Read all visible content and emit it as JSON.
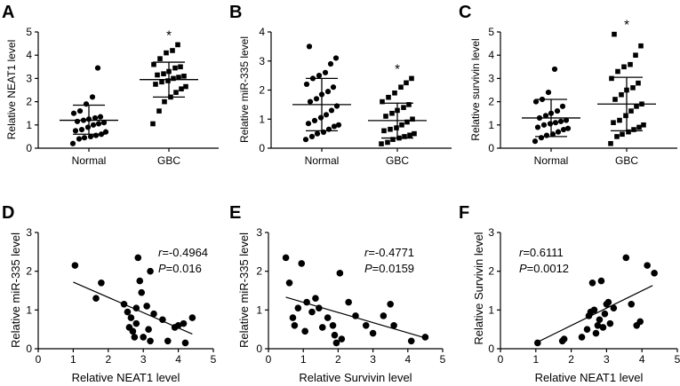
{
  "chart_data": [
    {
      "panel": "A",
      "type": "scatter",
      "ylabel": "Relative NEAT1 level",
      "categories": [
        "Normal",
        "GBC"
      ],
      "ylim": [
        0,
        5
      ],
      "yticks": [
        "0",
        "1",
        "2",
        "3",
        "4",
        "5"
      ],
      "series": [
        {
          "name": "Normal",
          "marker": "circle",
          "values": [
            0.2,
            0.4,
            0.45,
            0.5,
            0.55,
            0.6,
            0.7,
            0.75,
            0.8,
            0.9,
            1.0,
            1.05,
            1.1,
            1.15,
            1.2,
            1.25,
            1.3,
            1.35,
            1.5,
            1.6,
            1.9,
            2.2,
            3.45
          ],
          "mean": 1.2,
          "sd_low": 0.6,
          "sd_high": 1.85
        },
        {
          "name": "GBC",
          "marker": "square",
          "values": [
            1.05,
            1.6,
            2.0,
            2.2,
            2.4,
            2.55,
            2.65,
            2.75,
            2.85,
            2.9,
            3.0,
            3.05,
            3.1,
            3.15,
            3.2,
            3.3,
            3.45,
            3.5,
            3.6,
            3.85,
            4.1,
            4.2,
            4.45
          ],
          "mean": 2.95,
          "sd_low": 2.2,
          "sd_high": 3.7,
          "significance": "*"
        }
      ]
    },
    {
      "panel": "B",
      "type": "scatter",
      "ylabel": "Relative miR-335 level",
      "categories": [
        "Normal",
        "GBC"
      ],
      "ylim": [
        0,
        4
      ],
      "yticks": [
        "0",
        "1",
        "2",
        "3",
        "4"
      ],
      "series": [
        {
          "name": "Normal",
          "marker": "circle",
          "values": [
            0.3,
            0.4,
            0.5,
            0.55,
            0.65,
            0.75,
            0.8,
            0.85,
            0.95,
            1.05,
            1.15,
            1.3,
            1.45,
            1.6,
            1.7,
            1.85,
            1.95,
            2.1,
            2.2,
            2.4,
            2.5,
            2.6,
            2.9,
            3.1,
            3.5
          ],
          "mean": 1.5,
          "sd_low": 0.6,
          "sd_high": 2.4
        },
        {
          "name": "GBC",
          "marker": "square",
          "values": [
            0.15,
            0.2,
            0.3,
            0.35,
            0.4,
            0.45,
            0.5,
            0.6,
            0.65,
            0.7,
            0.8,
            0.9,
            1.0,
            1.1,
            1.2,
            1.3,
            1.4,
            1.5,
            1.6,
            1.75,
            1.9,
            2.1,
            2.25,
            2.4
          ],
          "mean": 0.95,
          "sd_low": 0.35,
          "sd_high": 1.55,
          "significance": "*"
        }
      ]
    },
    {
      "panel": "C",
      "type": "scatter",
      "ylabel": "Relative survivin level",
      "categories": [
        "Normal",
        "GBC"
      ],
      "ylim": [
        0,
        5
      ],
      "yticks": [
        "0",
        "1",
        "2",
        "3",
        "4",
        "5"
      ],
      "series": [
        {
          "name": "Normal",
          "marker": "circle",
          "values": [
            0.3,
            0.45,
            0.55,
            0.6,
            0.7,
            0.8,
            0.85,
            0.9,
            1.0,
            1.05,
            1.1,
            1.15,
            1.2,
            1.3,
            1.4,
            1.5,
            1.6,
            1.8,
            2.0,
            2.1,
            2.4,
            3.4
          ],
          "mean": 1.3,
          "sd_low": 0.5,
          "sd_high": 2.1
        },
        {
          "name": "GBC",
          "marker": "square",
          "values": [
            0.2,
            0.5,
            0.6,
            0.7,
            0.8,
            0.9,
            1.0,
            1.1,
            1.2,
            1.4,
            1.6,
            1.8,
            1.9,
            2.1,
            2.3,
            2.5,
            2.6,
            2.8,
            3.0,
            3.3,
            3.5,
            3.6,
            4.0,
            4.4,
            4.9
          ],
          "mean": 1.9,
          "sd_low": 0.75,
          "sd_high": 3.05,
          "significance": "*"
        }
      ]
    },
    {
      "panel": "D",
      "type": "scatter",
      "xlabel": "Relative NEAT1 level",
      "ylabel": "Relative miR-335 level",
      "xlim": [
        0,
        5
      ],
      "xticks": [
        "0",
        "1",
        "2",
        "3",
        "4",
        "5"
      ],
      "ylim": [
        0,
        3
      ],
      "yticks": [
        "0",
        "1",
        "2",
        "3"
      ],
      "r_label": "r=-0.4964",
      "p_label": "P=0.016",
      "points": [
        [
          1.05,
          2.15
        ],
        [
          1.65,
          1.3
        ],
        [
          1.8,
          1.7
        ],
        [
          2.45,
          1.15
        ],
        [
          2.55,
          0.95
        ],
        [
          2.6,
          0.55
        ],
        [
          2.65,
          0.8
        ],
        [
          2.7,
          0.45
        ],
        [
          2.75,
          0.3
        ],
        [
          2.8,
          0.65
        ],
        [
          2.8,
          1.05
        ],
        [
          2.85,
          2.35
        ],
        [
          2.9,
          1.75
        ],
        [
          2.95,
          1.45
        ],
        [
          3.0,
          0.3
        ],
        [
          3.1,
          1.1
        ],
        [
          3.15,
          0.5
        ],
        [
          3.2,
          2.0
        ],
        [
          3.2,
          0.2
        ],
        [
          3.3,
          0.9
        ],
        [
          3.55,
          0.75
        ],
        [
          3.7,
          0.2
        ],
        [
          3.9,
          0.55
        ],
        [
          4.0,
          0.6
        ],
        [
          4.15,
          0.65
        ],
        [
          4.2,
          0.15
        ],
        [
          4.4,
          0.8
        ]
      ],
      "fit": {
        "x": [
          1.0,
          4.4
        ],
        "y": [
          1.72,
          0.38
        ]
      }
    },
    {
      "panel": "E",
      "type": "scatter",
      "xlabel": "Relative Survivin level",
      "ylabel": "Relative miR-335 level",
      "xlim": [
        0,
        5
      ],
      "xticks": [
        "0",
        "1",
        "2",
        "3",
        "4",
        "5"
      ],
      "ylim": [
        0,
        3
      ],
      "yticks": [
        "0",
        "1",
        "2",
        "3"
      ],
      "r_label": "r=-0.4771",
      "p_label": "P=0.0159",
      "points": [
        [
          0.5,
          2.35
        ],
        [
          0.6,
          1.7
        ],
        [
          0.7,
          0.8
        ],
        [
          0.75,
          0.6
        ],
        [
          0.85,
          1.05
        ],
        [
          0.95,
          2.2
        ],
        [
          1.05,
          0.45
        ],
        [
          1.1,
          1.2
        ],
        [
          1.25,
          0.95
        ],
        [
          1.35,
          1.3
        ],
        [
          1.45,
          1.05
        ],
        [
          1.55,
          0.55
        ],
        [
          1.7,
          0.8
        ],
        [
          1.85,
          0.6
        ],
        [
          1.9,
          0.35
        ],
        [
          1.95,
          0.15
        ],
        [
          2.05,
          1.95
        ],
        [
          2.1,
          0.25
        ],
        [
          2.3,
          1.2
        ],
        [
          2.5,
          0.85
        ],
        [
          2.8,
          0.6
        ],
        [
          3.0,
          0.4
        ],
        [
          3.3,
          0.85
        ],
        [
          3.5,
          1.15
        ],
        [
          3.6,
          0.6
        ],
        [
          4.1,
          0.2
        ],
        [
          4.5,
          0.3
        ]
      ],
      "fit": {
        "x": [
          0.5,
          4.5
        ],
        "y": [
          1.33,
          0.28
        ]
      }
    },
    {
      "panel": "F",
      "type": "scatter",
      "xlabel": "Relative NEAT1 level",
      "ylabel": "Relative Survivin level",
      "xlim": [
        0,
        5
      ],
      "xticks": [
        "0",
        "1",
        "2",
        "3",
        "4",
        "5"
      ],
      "ylim": [
        0,
        3
      ],
      "yticks": [
        "0",
        "1",
        "2",
        "3"
      ],
      "r_label": "r=0.6111",
      "p_label": "P=0.0012",
      "points": [
        [
          1.05,
          0.15
        ],
        [
          1.75,
          0.2
        ],
        [
          1.8,
          0.25
        ],
        [
          2.3,
          0.3
        ],
        [
          2.45,
          0.5
        ],
        [
          2.5,
          0.85
        ],
        [
          2.55,
          0.95
        ],
        [
          2.6,
          1.7
        ],
        [
          2.65,
          1.0
        ],
        [
          2.7,
          0.4
        ],
        [
          2.75,
          0.6
        ],
        [
          2.8,
          0.75
        ],
        [
          2.85,
          1.75
        ],
        [
          2.9,
          0.55
        ],
        [
          2.95,
          0.9
        ],
        [
          3.0,
          1.15
        ],
        [
          3.05,
          1.2
        ],
        [
          3.1,
          0.65
        ],
        [
          3.2,
          1.05
        ],
        [
          3.55,
          2.35
        ],
        [
          3.7,
          1.15
        ],
        [
          3.85,
          0.6
        ],
        [
          3.95,
          0.7
        ],
        [
          4.15,
          2.15
        ],
        [
          4.35,
          1.95
        ]
      ],
      "fit": {
        "x": [
          1.0,
          4.3
        ],
        "y": [
          0.15,
          1.63
        ]
      }
    }
  ]
}
